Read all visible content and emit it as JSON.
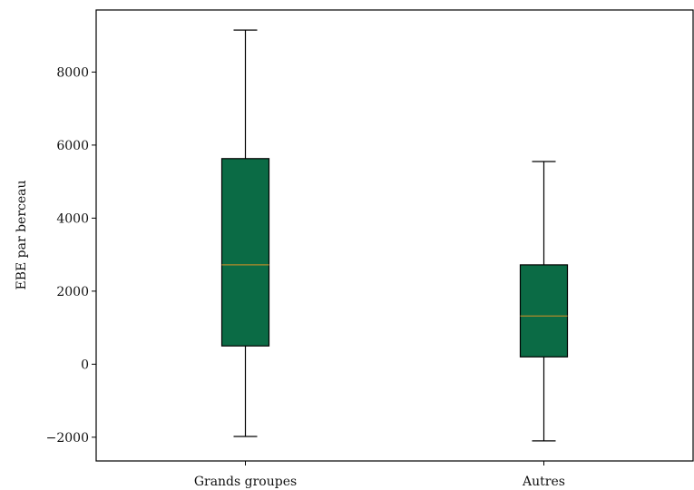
{
  "chart_data": {
    "type": "boxplot",
    "title": "",
    "xlabel": "",
    "ylabel": "EBE par berceau",
    "ylim": [
      -2650,
      9700
    ],
    "yticks": [
      -2000,
      0,
      2000,
      4000,
      6000,
      8000
    ],
    "ytick_labels": [
      "−2000",
      "0",
      "2000",
      "4000",
      "6000",
      "8000"
    ],
    "categories": [
      "Grands groupes",
      "Autres"
    ],
    "boxes": [
      {
        "whisker_low": -1980,
        "q1": 500,
        "median": 2720,
        "q3": 5630,
        "whisker_high": 9150
      },
      {
        "whisker_low": -2100,
        "q1": 200,
        "median": 1320,
        "q3": 2720,
        "whisker_high": 5550
      }
    ],
    "grid": false,
    "colors": {
      "box_fill": "#0b6b45",
      "box_edge": "#000000",
      "median": "#b28a2a",
      "whisker": "#000000",
      "axis": "#000000"
    }
  }
}
